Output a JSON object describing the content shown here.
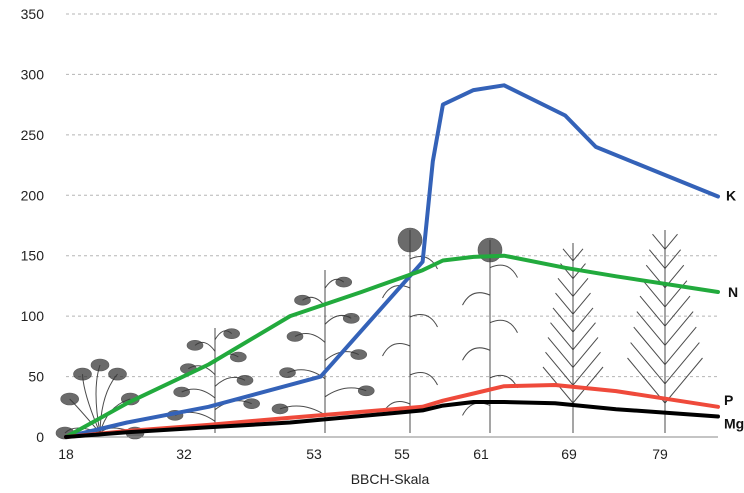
{
  "chart_data": {
    "type": "line",
    "xlabel": "BBCH-Skala",
    "ylabel": "",
    "ylim": [
      0,
      350
    ],
    "yticks": [
      0,
      50,
      100,
      150,
      200,
      250,
      300,
      350
    ],
    "x_tick_labels": [
      "18",
      "32",
      "53",
      "55",
      "61",
      "69",
      "79"
    ],
    "grid": "horizontal dashed",
    "series": [
      {
        "name": "K",
        "color": "#3462b8",
        "points": [
          [
            18,
            0
          ],
          [
            24,
            12
          ],
          [
            32,
            25
          ],
          [
            43,
            50
          ],
          [
            53,
            145
          ],
          [
            54,
            228
          ],
          [
            55,
            275
          ],
          [
            58,
            287
          ],
          [
            61,
            291
          ],
          [
            67,
            266
          ],
          [
            70,
            240
          ],
          [
            77,
            216
          ],
          [
            82,
            199
          ]
        ]
      },
      {
        "name": "N",
        "color": "#22aa3d",
        "points": [
          [
            18,
            0
          ],
          [
            24,
            28
          ],
          [
            32,
            60
          ],
          [
            40,
            100
          ],
          [
            47,
            120
          ],
          [
            53,
            138
          ],
          [
            55,
            146
          ],
          [
            58,
            149
          ],
          [
            61,
            150
          ],
          [
            67,
            140
          ],
          [
            72,
            133
          ],
          [
            82,
            120
          ]
        ]
      },
      {
        "name": "P",
        "color": "#ef4a3b",
        "points": [
          [
            18,
            0
          ],
          [
            24,
            5
          ],
          [
            32,
            10
          ],
          [
            40,
            16
          ],
          [
            53,
            25
          ],
          [
            55,
            30
          ],
          [
            58,
            36
          ],
          [
            61,
            42
          ],
          [
            66,
            43
          ],
          [
            72,
            38
          ],
          [
            82,
            25
          ]
        ]
      },
      {
        "name": "Mg",
        "color": "#000000",
        "points": [
          [
            18,
            0
          ],
          [
            24,
            4
          ],
          [
            32,
            8
          ],
          [
            40,
            12
          ],
          [
            53,
            22
          ],
          [
            55,
            26
          ],
          [
            58,
            29
          ],
          [
            61,
            29
          ],
          [
            66,
            28
          ],
          [
            72,
            23
          ],
          [
            82,
            17
          ]
        ]
      }
    ]
  }
}
